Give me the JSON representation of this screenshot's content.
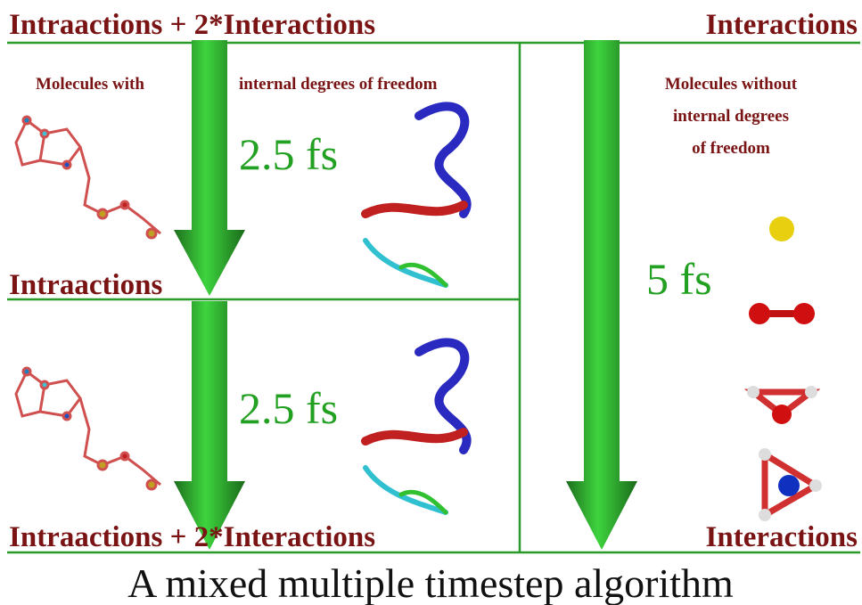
{
  "header": {
    "left": "Intraactions + 2*Interactions",
    "right": "Interactions"
  },
  "left_panel": {
    "label_left": "Molecules with",
    "label_right": "internal degrees of freedom",
    "upper_timestep": "2.5 fs",
    "middle_label": "Intraactions",
    "lower_timestep": "2.5 fs"
  },
  "right_panel": {
    "label_lines": [
      "Molecules without",
      "internal degrees",
      "of freedom"
    ],
    "timestep": "5 fs"
  },
  "footer": {
    "left": "Intraactions + 2*Interactions",
    "right": "Interactions"
  },
  "caption": "A mixed multiple timestep algorithm"
}
